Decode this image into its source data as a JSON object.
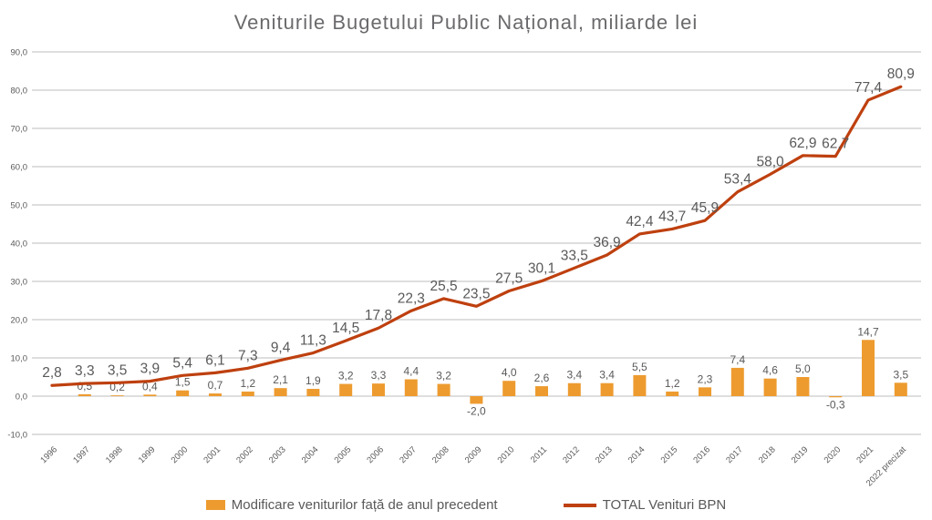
{
  "title": "Veniturile Bugetului Public Național, miliarde lei",
  "legend": {
    "bars_label": "Modificare veniturilor față de anul precedent",
    "line_label": "TOTAL Venituri BPN"
  },
  "colors": {
    "bar": "#ED9B2F",
    "line": "#BE400F",
    "grid": "#D9D9D9",
    "text": "#595959",
    "title_text": "#6B696C",
    "background": "#FFFFFF"
  },
  "chart_data": {
    "type": "combo",
    "title": "Veniturile Bugetului Public Național, miliarde lei",
    "categories": [
      "1996",
      "1997",
      "1998",
      "1999",
      "2000",
      "2001",
      "2002",
      "2003",
      "2004",
      "2005",
      "2006",
      "2007",
      "2008",
      "2009",
      "2010",
      "2011",
      "2012",
      "2013",
      "2014",
      "2015",
      "2016",
      "2017",
      "2018",
      "2019",
      "2020",
      "2021",
      "2022 precizat"
    ],
    "series": [
      {
        "name": "Modificare veniturilor față de anul precedent",
        "type": "bar",
        "values": [
          null,
          0.5,
          0.2,
          0.4,
          1.5,
          0.7,
          1.2,
          2.1,
          1.9,
          3.2,
          3.3,
          4.4,
          3.2,
          -2.0,
          4.0,
          2.6,
          3.4,
          3.4,
          5.5,
          1.2,
          2.3,
          7.4,
          4.6,
          5.0,
          -0.3,
          14.7,
          3.5
        ]
      },
      {
        "name": "TOTAL Venituri BPN",
        "type": "line",
        "values": [
          2.8,
          3.3,
          3.5,
          3.9,
          5.4,
          6.1,
          7.3,
          9.4,
          11.3,
          14.5,
          17.8,
          22.3,
          25.5,
          23.5,
          27.5,
          30.1,
          33.5,
          36.9,
          42.4,
          43.7,
          45.9,
          53.4,
          58.0,
          62.9,
          62.7,
          77.4,
          80.9
        ]
      }
    ],
    "ylim": [
      -10,
      90
    ],
    "yticks": [
      90,
      80,
      70,
      60,
      50,
      40,
      30,
      20,
      10,
      0,
      -10
    ],
    "decimal_separator": ",",
    "grid": true,
    "legend_position": "bottom",
    "xlabel": "",
    "ylabel": ""
  }
}
